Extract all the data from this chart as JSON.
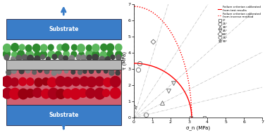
{
  "left_panel": {
    "substrate_color": "#3a7dc8",
    "substrate_text_color": "white",
    "foil_color": "#b8b8b8",
    "foil_text_color": "black",
    "green_dark_color": "#2e8b2e",
    "green_light_color": "#5cb85c",
    "dark_particle_color": "#606060",
    "dark_particle_color2": "#404040",
    "red_dark_color": "#990010",
    "red_mid_color": "#cc001a",
    "pink_bg_color": "#d06070",
    "arrow_color": "#3a7dc8"
  },
  "right_panel": {
    "xlim": [
      0,
      7
    ],
    "ylim": [
      0,
      7
    ],
    "xlabel": "σ_n (MPa)",
    "ylabel": "τ (MPa)",
    "solid_sn0": 3.15,
    "solid_t0": 3.35,
    "dot_sn0": 3.15,
    "dot_t0": 6.85,
    "angle_lines": [
      0,
      15,
      30,
      45,
      60,
      75,
      90
    ],
    "data_points": {
      "0": [
        {
          "sn": 3.1,
          "t": 0.0
        },
        {
          "sn": 3.85,
          "t": 0.0
        }
      ],
      "15": [
        {
          "sn": 0.65,
          "t": 0.18
        }
      ],
      "30": [
        {
          "sn": 1.55,
          "t": 0.9
        }
      ],
      "45": [
        {
          "sn": 1.9,
          "t": 1.65
        },
        {
          "sn": 2.15,
          "t": 2.15
        }
      ],
      "60": [
        {
          "sn": 1.05,
          "t": 4.7
        }
      ],
      "75": [
        {
          "sn": 0.3,
          "t": 3.35
        },
        {
          "sn": 0.25,
          "t": 2.95
        }
      ],
      "90": [
        {
          "sn": 0.05,
          "t": 0.65
        }
      ]
    },
    "legend_angles": [
      "0°",
      "15°",
      "30°",
      "45°",
      "60°",
      "75°",
      "90°"
    ],
    "markers": [
      "s",
      "o",
      "^",
      "v",
      "D",
      "o",
      "★"
    ],
    "marker_codes": [
      "s",
      "o",
      "^",
      "v",
      "D",
      "o",
      "*"
    ]
  }
}
